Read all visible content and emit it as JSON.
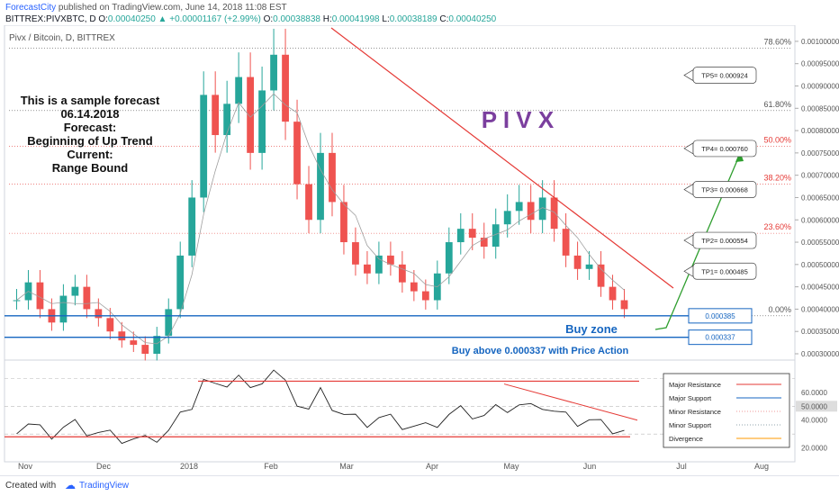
{
  "header": {
    "publisher": "ForecastCity",
    "published_text": "published on TradingView.com, June 14, 2018 11:08 EST",
    "symbol": "BITTREX:PIVXBTC, D",
    "open_label": "O:",
    "open": "0.00040250",
    "change": "+0.00001167 (+2.99%)",
    "oo_label": "O:",
    "oo": "0.00038838",
    "high_label": "H:",
    "high": "0.00041998",
    "low_label": "L:",
    "low": "0.00038189",
    "close_label": "C:",
    "close": "0.00040250"
  },
  "pane_title": "Pivx / Bitcoin, D, BITTREX",
  "forecast_note": [
    "This is a sample forecast",
    "06.14.2018",
    "Forecast:",
    "Beginning of Up Trend",
    "Current:",
    "Range Bound"
  ],
  "watermark": "P I V X",
  "buy_zone_label": "Buy zone",
  "buy_above_label": "Buy above 0.000337 with Price Action",
  "fib_levels": [
    {
      "label": "78.60%",
      "price": 0.000985,
      "color": "#555555"
    },
    {
      "label": "61.80%",
      "price": 0.000845,
      "color": "#555555"
    },
    {
      "label": "50.00%",
      "price": 0.000765,
      "color": "#e53935"
    },
    {
      "label": "38.20%",
      "price": 0.00068,
      "color": "#e53935"
    },
    {
      "label": "23.60%",
      "price": 0.00057,
      "color": "#e53935"
    },
    {
      "label": "0.00%",
      "price": 0.000385,
      "color": "#555555"
    }
  ],
  "targets": [
    {
      "label": "TP5= 0.000924",
      "price": 0.000924
    },
    {
      "label": "TP4= 0.000760",
      "price": 0.00076
    },
    {
      "label": "TP3= 0.000668",
      "price": 0.000668
    },
    {
      "label": "TP2= 0.000554",
      "price": 0.000554
    },
    {
      "label": "TP1= 0.000485",
      "price": 0.000485
    }
  ],
  "support_boxes": [
    {
      "label": "0.000385",
      "price": 0.000385
    },
    {
      "label": "0.000337",
      "price": 0.000337
    }
  ],
  "oscillator_legend": [
    {
      "label": "Major Resistance",
      "color": "#e53935",
      "style": "solid"
    },
    {
      "label": "Major Support",
      "color": "#1565c0",
      "style": "solid"
    },
    {
      "label": "Minor Resistance",
      "color": "#ef9a9a",
      "style": "dotted"
    },
    {
      "label": "Minor Support",
      "color": "#90a4ae",
      "style": "dotted"
    },
    {
      "label": "Divergence",
      "color": "#ff9800",
      "style": "solid"
    }
  ],
  "price_axis_labels": [
    "0.00100000",
    "0.00095000",
    "0.00090000",
    "0.00085000",
    "0.00080000",
    "0.00075000",
    "0.00070000",
    "0.00065000",
    "0.00060000",
    "0.00055000",
    "0.00050000",
    "0.00045000",
    "0.00040000",
    "0.00035000",
    "0.00030000"
  ],
  "osc_axis_labels": [
    {
      "label": "60.0000",
      "value": 60
    },
    {
      "label": "50.0000",
      "value": 50,
      "highlight": true
    },
    {
      "label": "40.0000",
      "value": 40
    },
    {
      "label": "20.0000",
      "value": 20
    }
  ],
  "time_axis_labels": [
    "Nov",
    "Dec",
    "2018",
    "Feb",
    "Mar",
    "Apr",
    "May",
    "Jun",
    "Jul",
    "Aug"
  ],
  "footer": {
    "created_with": "Created with",
    "brand": "TradingView"
  },
  "colors": {
    "up": "#26a69a",
    "brand": "#2962ff",
    "trendline": "#e53935",
    "support": "#1565c0",
    "arrow": "#2e9e2e",
    "watermark": "#7b3f9e"
  },
  "chart_data": {
    "type": "candlestick",
    "title": "Pivx / Bitcoin, D, BITTREX",
    "y_range": [
      0.0003,
      0.00102
    ],
    "close_series": [
      0.00042,
      0.00046,
      0.0004,
      0.00037,
      0.00043,
      0.00045,
      0.0004,
      0.00038,
      0.00035,
      0.00033,
      0.00032,
      0.0003,
      0.00034,
      0.0004,
      0.00052,
      0.00065,
      0.00088,
      0.00079,
      0.00086,
      0.00092,
      0.00075,
      0.00089,
      0.00097,
      0.00082,
      0.00068,
      0.0006,
      0.00075,
      0.00064,
      0.00055,
      0.0005,
      0.00048,
      0.00052,
      0.0005,
      0.00046,
      0.00044,
      0.00042,
      0.00048,
      0.00055,
      0.00058,
      0.00056,
      0.00054,
      0.00059,
      0.00062,
      0.00064,
      0.0006,
      0.00065,
      0.00058,
      0.00052,
      0.00049,
      0.0005,
      0.00045,
      0.00042,
      0.0004
    ]
  }
}
